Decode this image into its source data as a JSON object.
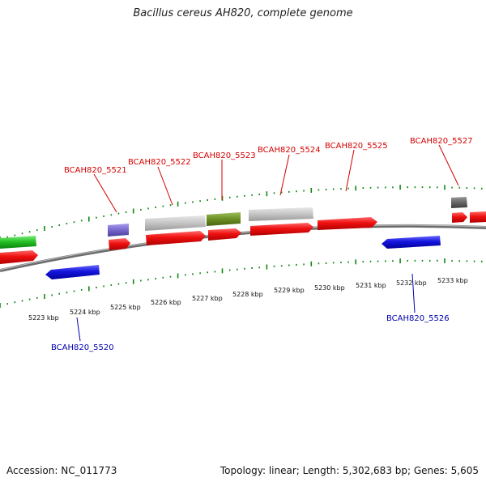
{
  "title": "Bacillus cereus AH820, complete genome",
  "footer": {
    "accession": "Accession: NC_011773",
    "summary": "Topology: linear; Length: 5,302,683 bp; Genes: 5,605"
  },
  "colors": {
    "forward_cds": "#ee1010",
    "reverse_cds": "#1515dd",
    "tick_green": "#118811",
    "backbone": "#888888",
    "label_red": "#d40000",
    "label_blue": "#0000b0",
    "gene_grey": "#c4c4c4",
    "gene_olive": "#6b8e23",
    "gene_violet": "#7766cc",
    "gene_green": "#22bb22",
    "gene_darkgrey": "#666666"
  },
  "scale_labels": [
    "5223 kbp",
    "5224 kbp",
    "5225 kbp",
    "5226 kbp",
    "5227 kbp",
    "5228 kbp",
    "5229 kbp",
    "5230 kbp",
    "5231 kbp",
    "5232 kbp",
    "5233 kbp"
  ],
  "gene_labels_top": [
    "BCAH820_5521",
    "BCAH820_5522",
    "BCAH820_5523",
    "BCAH820_5524",
    "BCAH820_5525",
    "BCAH820_5527"
  ],
  "gene_labels_bottom": [
    "BCAH820_5520",
    "BCAH820_5526"
  ]
}
